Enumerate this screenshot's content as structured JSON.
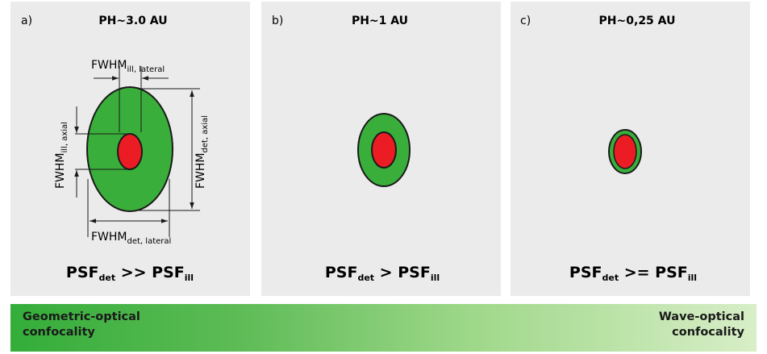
{
  "panels": [
    {
      "letter": "a)",
      "title": "PH~3.0 AU",
      "fwhm_ill_lateral": {
        "base": "FWHM",
        "sub": "ill, lateral"
      },
      "fwhm_ill_axial": {
        "base": "FWHM",
        "sub": "ill, axial"
      },
      "fwhm_det_axial": {
        "base": "FWHM",
        "sub": "det, axial"
      },
      "fwhm_det_lateral": {
        "base": "FWHM",
        "sub": "det, lateral"
      },
      "formula": {
        "psf1": "PSF",
        "sub1": "det",
        "op": " >> ",
        "psf2": "PSF",
        "sub2": "ill"
      }
    },
    {
      "letter": "b)",
      "title": "PH~1 AU",
      "formula": {
        "psf1": "PSF",
        "sub1": "det",
        "op": " > ",
        "psf2": "PSF",
        "sub2": "ill"
      }
    },
    {
      "letter": "c)",
      "title": "PH~0,25 AU",
      "formula": {
        "psf1": "PSF",
        "sub1": "det",
        "op": " >= ",
        "psf2": "PSF",
        "sub2": "ill"
      }
    }
  ],
  "scale": {
    "left_label": "Geometric-optical\nconfocality",
    "right_label": "Wave-optical\nconfocality"
  },
  "colors": {
    "panel_bg": "#ebebeb",
    "detection_psf": "#3aae3b",
    "illumination_psf": "#ec1c24",
    "outline": "#1a1a1a",
    "gradient_start": "#34ad3a",
    "gradient_end": "#d8eec7"
  }
}
